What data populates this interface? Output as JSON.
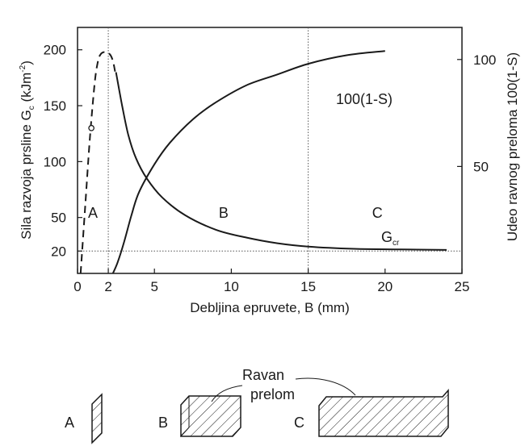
{
  "chart_data": {
    "type": "line",
    "xlabel": "Debljina epruvete, B (mm)",
    "ylabel_left": "Sila razvoja prsline G",
    "ylabel_left_sub": "c",
    "ylabel_left_unit": "(kJm",
    "ylabel_left_unit_sup": "-2",
    "ylabel_left_unit_close": ")",
    "ylabel_right": "Udeo ravnog preloma 100(1-S)",
    "x_ticks": [
      "0",
      "2",
      "5",
      "10",
      "15",
      "20",
      "25"
    ],
    "y_left_ticks": [
      "20",
      "50",
      "100",
      "150",
      "200"
    ],
    "y_right_ticks": [
      "50",
      "100"
    ],
    "xlim": [
      0,
      25
    ],
    "ylim_left": [
      0,
      220
    ],
    "ylim_right": [
      0,
      115
    ],
    "guides": {
      "x": [
        2,
        15
      ],
      "y_left": 20
    },
    "regions": [
      {
        "label": "A",
        "x": 1.0,
        "y": 55
      },
      {
        "label": "B",
        "x": 9.5,
        "y": 55
      },
      {
        "label": "C",
        "x": 19.5,
        "y": 55
      }
    ],
    "series": [
      {
        "name": "G",
        "name_sub": "cr",
        "axis": "left",
        "x": [
          2.5,
          2.9,
          3.3,
          3.8,
          4.5,
          5.5,
          7,
          9,
          11,
          13,
          15,
          18,
          21,
          24
        ],
        "y": [
          180,
          150,
          124,
          103,
          85,
          68,
          52,
          39,
          32,
          27,
          24,
          22,
          21.5,
          21
        ]
      },
      {
        "name": "100(1-S)",
        "axis": "right",
        "x": [
          2.3,
          2.6,
          3,
          3.5,
          4,
          5,
          6,
          7.5,
          9,
          11,
          13,
          15,
          17.5,
          20
        ],
        "y": [
          0,
          5,
          14,
          27,
          38,
          51,
          61,
          72,
          80,
          88,
          93,
          98,
          102,
          104
        ]
      },
      {
        "name": "",
        "axis": "left",
        "style": "dashed",
        "x": [
          0.2,
          0.5,
          0.8,
          1.1,
          1.3,
          1.5,
          1.8,
          2.1,
          2.3,
          2.45
        ],
        "y": [
          0,
          60,
          120,
          168,
          188,
          196,
          198,
          196,
          190,
          180
        ]
      }
    ],
    "marker": {
      "x": 0.9,
      "y": 130
    }
  },
  "schematic": {
    "label_plane": "Ravan",
    "label_fracture": "prelom",
    "specimens": [
      {
        "label": "A"
      },
      {
        "label": "B"
      },
      {
        "label": "C"
      }
    ]
  }
}
